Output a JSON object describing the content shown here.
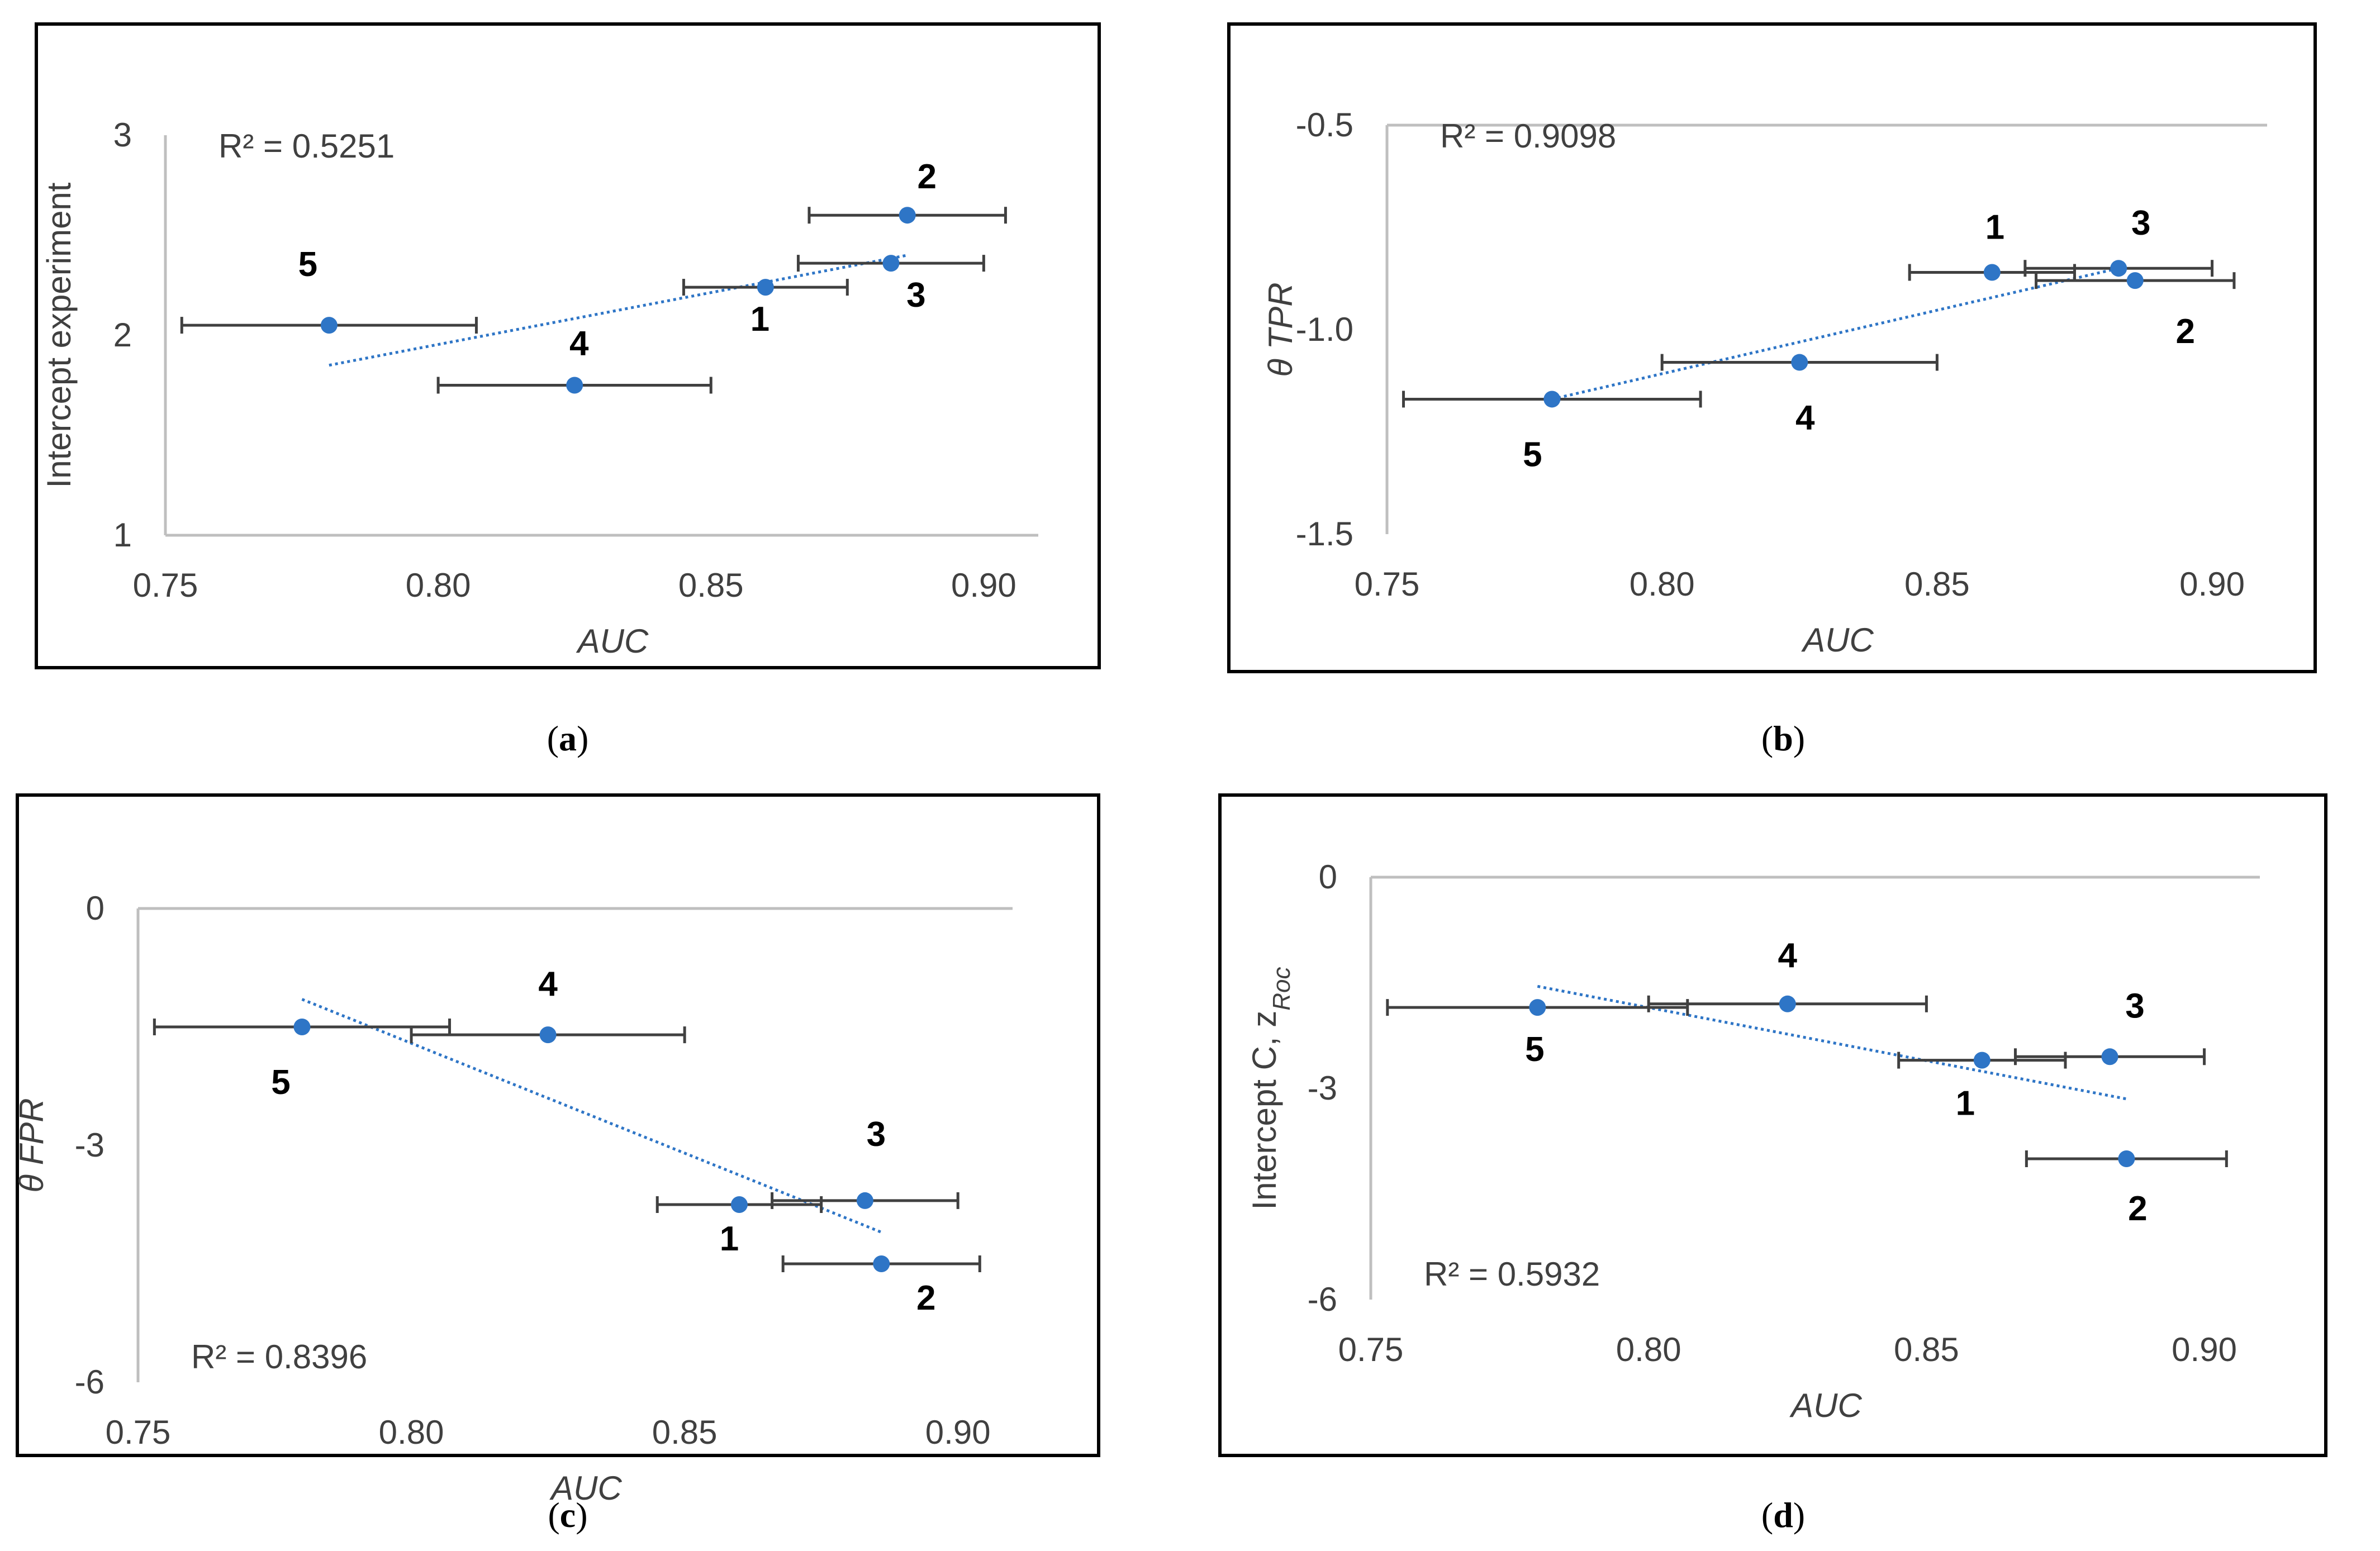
{
  "chart_data": [
    {
      "type": "scatter",
      "panel_label": "a",
      "title": "",
      "xlabel": "AUC",
      "ylabel": "Intercept experiment",
      "xlim": [
        0.75,
        0.91
      ],
      "ylim": [
        1,
        3
      ],
      "x_ticks": [
        "0.75",
        "0.80",
        "0.85",
        "0.90"
      ],
      "y_ticks": [
        "1",
        "2",
        "3"
      ],
      "r2_text": "R² = 0.5251",
      "r2_position": "top-left",
      "grid": false,
      "color": "#2E75C6",
      "trend": [
        [
          0.78,
          1.85
        ],
        [
          0.886,
          2.4
        ]
      ],
      "points": [
        {
          "label": "1",
          "x": 0.86,
          "y": 2.24,
          "xerr": 0.015
        },
        {
          "label": "2",
          "x": 0.886,
          "y": 2.6,
          "xerr": 0.018
        },
        {
          "label": "3",
          "x": 0.883,
          "y": 2.36,
          "xerr": 0.017
        },
        {
          "label": "4",
          "x": 0.825,
          "y": 1.75,
          "xerr": 0.025
        },
        {
          "label": "5",
          "x": 0.78,
          "y": 2.05,
          "xerr": 0.027
        }
      ]
    },
    {
      "type": "scatter",
      "panel_label": "b",
      "title": "",
      "xlabel": "AUC",
      "ylabel": "θ TPR",
      "xlim": [
        0.75,
        0.91
      ],
      "ylim": [
        -1.5,
        -0.5
      ],
      "x_ticks": [
        "0.75",
        "0.80",
        "0.85",
        "0.90"
      ],
      "y_ticks": [
        "-1.5",
        "-1.0",
        "-0.5"
      ],
      "r2_text": "R² = 0.9098",
      "r2_position": "top-left",
      "grid": false,
      "color": "#2E75C6",
      "trend": [
        [
          0.78,
          -1.17
        ],
        [
          0.883,
          -0.85
        ]
      ],
      "points": [
        {
          "label": "1",
          "x": 0.86,
          "y": -0.86,
          "xerr": 0.015
        },
        {
          "label": "2",
          "x": 0.886,
          "y": -0.88,
          "xerr": 0.018
        },
        {
          "label": "3",
          "x": 0.883,
          "y": -0.85,
          "xerr": 0.017
        },
        {
          "label": "4",
          "x": 0.825,
          "y": -1.08,
          "xerr": 0.025
        },
        {
          "label": "5",
          "x": 0.78,
          "y": -1.17,
          "xerr": 0.027
        }
      ]
    },
    {
      "type": "scatter",
      "panel_label": "c",
      "title": "",
      "xlabel": "AUC",
      "ylabel": "θ FPR",
      "xlim": [
        0.75,
        0.91
      ],
      "ylim": [
        -6,
        0
      ],
      "x_ticks": [
        "0.75",
        "0.80",
        "0.85",
        "0.90"
      ],
      "y_ticks": [
        "-6",
        "-3",
        "0"
      ],
      "r2_text": "R² = 0.8396",
      "r2_position": "bottom-left",
      "grid": false,
      "color": "#2E75C6",
      "trend": [
        [
          0.78,
          -1.15
        ],
        [
          0.886,
          -4.1
        ]
      ],
      "points": [
        {
          "label": "1",
          "x": 0.86,
          "y": -3.75,
          "xerr": 0.015
        },
        {
          "label": "2",
          "x": 0.886,
          "y": -4.5,
          "xerr": 0.018
        },
        {
          "label": "3",
          "x": 0.883,
          "y": -3.7,
          "xerr": 0.017
        },
        {
          "label": "4",
          "x": 0.825,
          "y": -1.6,
          "xerr": 0.025
        },
        {
          "label": "5",
          "x": 0.78,
          "y": -1.5,
          "xerr": 0.027
        }
      ]
    },
    {
      "type": "scatter",
      "panel_label": "d",
      "title": "",
      "xlabel": "AUC",
      "ylabel_main": "Intercept C, z",
      "ylabel_sub": "Roc",
      "xlim": [
        0.75,
        0.91
      ],
      "ylim": [
        -6,
        0
      ],
      "x_ticks": [
        "0.75",
        "0.80",
        "0.85",
        "0.90"
      ],
      "y_ticks": [
        "-6",
        "-3",
        "0"
      ],
      "r2_text": "R² = 0.5932",
      "r2_position": "bottom-left",
      "grid": false,
      "color": "#2E75C6",
      "trend": [
        [
          0.78,
          -1.55
        ],
        [
          0.886,
          -3.15
        ]
      ],
      "points": [
        {
          "label": "1",
          "x": 0.86,
          "y": -2.6,
          "xerr": 0.015
        },
        {
          "label": "2",
          "x": 0.886,
          "y": -4.0,
          "xerr": 0.018
        },
        {
          "label": "3",
          "x": 0.883,
          "y": -2.55,
          "xerr": 0.017
        },
        {
          "label": "4",
          "x": 0.825,
          "y": -1.8,
          "xerr": 0.025
        },
        {
          "label": "5",
          "x": 0.78,
          "y": -1.85,
          "xerr": 0.027
        }
      ]
    }
  ],
  "captions": [
    "a",
    "b",
    "c",
    "d"
  ]
}
